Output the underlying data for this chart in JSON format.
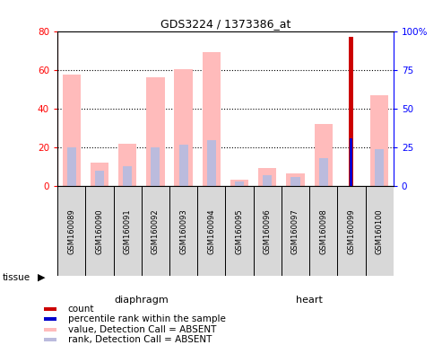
{
  "title": "GDS3224 / 1373386_at",
  "samples": [
    "GSM160089",
    "GSM160090",
    "GSM160091",
    "GSM160092",
    "GSM160093",
    "GSM160094",
    "GSM160095",
    "GSM160096",
    "GSM160097",
    "GSM160098",
    "GSM160099",
    "GSM160100"
  ],
  "tissue_groups": [
    {
      "label": "diaphragm",
      "start": 0,
      "end": 6,
      "color": "#99ee99"
    },
    {
      "label": "heart",
      "start": 6,
      "end": 12,
      "color": "#44dd44"
    }
  ],
  "value_absent": [
    57.5,
    12.0,
    22.0,
    56.0,
    60.5,
    69.0,
    3.5,
    9.5,
    6.5,
    32.0,
    0,
    47.0
  ],
  "rank_absent": [
    20.0,
    8.0,
    10.5,
    20.0,
    21.5,
    24.0,
    2.5,
    5.5,
    5.0,
    14.5,
    0,
    19.0
  ],
  "count": [
    0,
    0,
    0,
    0,
    0,
    0,
    0,
    0,
    0,
    0,
    77.0,
    0
  ],
  "percentile_rank": [
    0,
    0,
    0,
    0,
    0,
    0,
    0,
    0,
    0,
    0,
    24.5,
    0
  ],
  "ylim_left": [
    0,
    80
  ],
  "ylim_right": [
    0,
    100
  ],
  "yticks_left": [
    0,
    20,
    40,
    60,
    80
  ],
  "yticks_right": [
    0,
    25,
    50,
    75,
    100
  ],
  "color_count": "#cc0000",
  "color_percentile": "#0000cc",
  "color_value_absent": "#ffbbbb",
  "color_rank_absent": "#bbbbdd",
  "sample_bg": "#d8d8d8",
  "legend_items": [
    {
      "color": "#cc0000",
      "label": "count"
    },
    {
      "color": "#0000cc",
      "label": "percentile rank within the sample"
    },
    {
      "color": "#ffbbbb",
      "label": "value, Detection Call = ABSENT"
    },
    {
      "color": "#bbbbdd",
      "label": "rank, Detection Call = ABSENT"
    }
  ]
}
